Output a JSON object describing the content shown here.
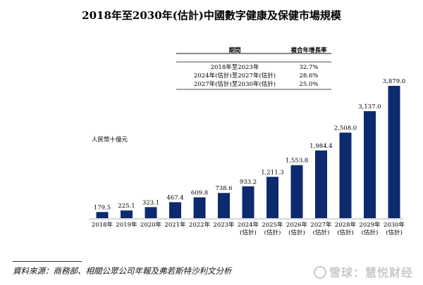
{
  "watermark": "雪球：慧悦财经",
  "source": "資料來源：商務部、相關公眾公司年報及弗若斯特沙利文分析",
  "cagr_table": {
    "header_period": "期間",
    "header_cagr": "複合年增長率",
    "rows": [
      {
        "period": "2018年至2023年",
        "cagr": "32.7%"
      },
      {
        "period": "2024年(估計)至2027年(估計)",
        "cagr": "28.6%"
      },
      {
        "period": "2027年(估計)至2030年(估計)",
        "cagr": "25.0%"
      }
    ]
  },
  "chart_data": {
    "type": "bar",
    "title": "2018年至2030年(估計)中國數字健康及保健市場規模",
    "ylabel": "人民幣十億元",
    "categories": [
      "2018年",
      "2019年",
      "2020年",
      "2021年",
      "2022年",
      "2023年",
      "2024年(估計)",
      "2025年(估計)",
      "2026年(估計)",
      "2027年(估計)",
      "2028年(估計)",
      "2029年(估計)",
      "2030年(估計)"
    ],
    "values": [
      179.5,
      225.1,
      323.1,
      467.4,
      609.8,
      738.6,
      933.2,
      1211.3,
      1553.8,
      1984.4,
      2508.0,
      3137.0,
      3879.0
    ],
    "value_labels": [
      "179.5",
      "225.1",
      "323.1",
      "467.4",
      "609.8",
      "738.6",
      "933.2",
      "1,211.3",
      "1,553.8",
      "1,984.4",
      "2,508.0",
      "3,137.0",
      "3,879.0"
    ],
    "ylim": [
      0,
      3879.0
    ],
    "bar_color": "#0d2a6e",
    "grid": false,
    "legend": "none"
  }
}
